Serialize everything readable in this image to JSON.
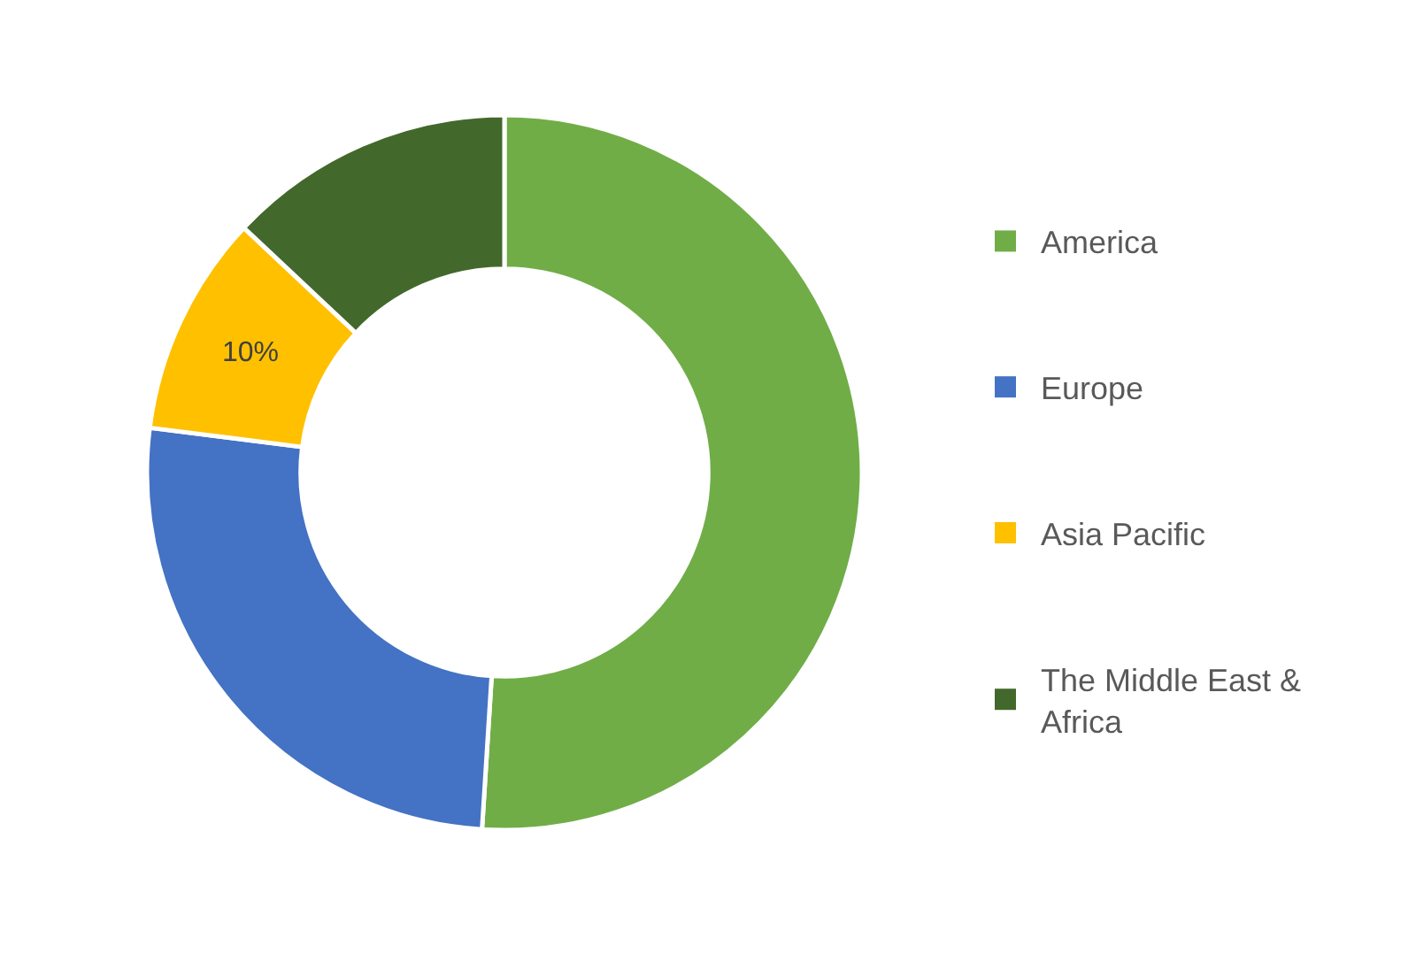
{
  "chart_data": {
    "type": "donut",
    "categories": [
      "America",
      "Europe",
      "Asia Pacific",
      "The Middle East & Africa"
    ],
    "values": [
      51,
      26,
      10,
      13
    ],
    "colors": [
      "#70ad47",
      "#4472c4",
      "#ffc000",
      "#43682b"
    ],
    "value_labels": [
      null,
      null,
      "10%",
      null
    ],
    "legend": "right"
  }
}
